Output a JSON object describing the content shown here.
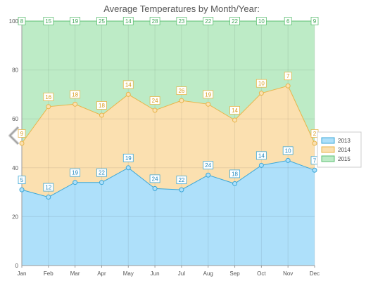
{
  "chart_data": {
    "type": "area",
    "stacked": true,
    "title": "Average Temperatures by Month/Year:",
    "categories": [
      "Jan",
      "Feb",
      "Mar",
      "Apr",
      "May",
      "Jun",
      "Jul",
      "Aug",
      "Sep",
      "Oct",
      "Nov",
      "Dec"
    ],
    "ylim": [
      0,
      100
    ],
    "yticks": [
      0,
      20,
      40,
      60,
      80,
      100
    ],
    "grid": true,
    "legend_position": "right",
    "series": [
      {
        "name": "2013",
        "values": [
          5,
          12,
          19,
          22,
          19,
          24,
          22,
          24,
          18,
          14,
          10,
          7
        ],
        "cumulative": [
          31,
          28,
          34,
          34,
          40,
          31.5,
          31,
          37,
          33.5,
          41,
          43,
          39
        ]
      },
      {
        "name": "2014",
        "values": [
          9,
          16,
          18,
          18,
          14,
          24,
          26,
          19,
          14,
          10,
          7,
          2
        ],
        "cumulative": [
          50,
          65,
          66,
          61.5,
          70,
          63.5,
          67.5,
          66,
          59.5,
          70.5,
          73.5,
          50
        ]
      },
      {
        "name": "2015",
        "values": [
          8,
          15,
          19,
          25,
          14,
          28,
          23,
          22,
          22,
          10,
          6,
          9
        ],
        "cumulative": [
          100,
          100,
          100,
          100,
          100,
          100,
          100,
          100,
          100,
          100,
          100,
          100
        ]
      }
    ],
    "colors": {
      "2013": {
        "fill": "#aee0fa",
        "stroke": "#3ba7d8",
        "label": "#1f86bd"
      },
      "2014": {
        "fill": "#fbe0b0",
        "stroke": "#e8b54a",
        "label": "#d99a1a"
      },
      "2015": {
        "fill": "#bdebc6",
        "stroke": "#5cbf72",
        "label": "#3ea655"
      }
    }
  },
  "nav": {
    "back_icon": "chevron-left-icon"
  }
}
